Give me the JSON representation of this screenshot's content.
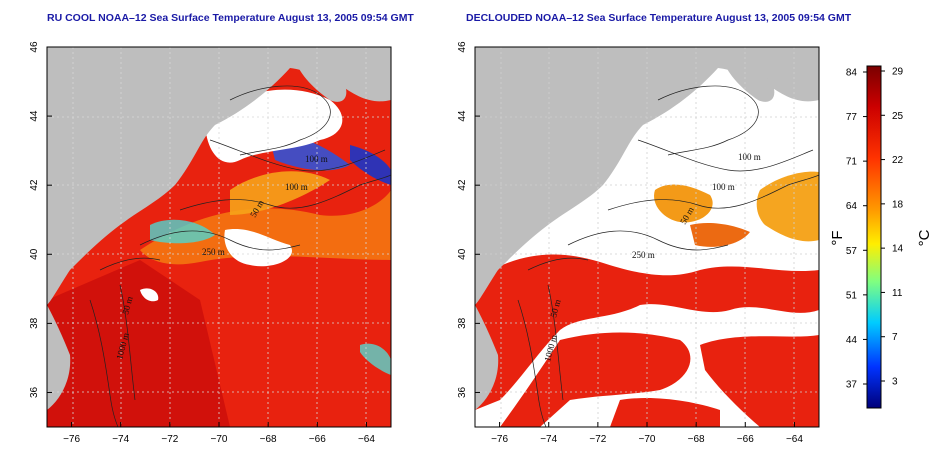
{
  "panels": [
    {
      "title": "RU COOL NOAA–12 Sea Surface Temperature August 13, 2005 09:54 GMT",
      "contour_labels": [
        "100 m",
        "100 m",
        "50 m",
        "250 m",
        "50 m",
        "1000 m"
      ]
    },
    {
      "title": "DECLOUDED NOAA–12 Sea Surface Temperature August 13, 2005 09:54 GMT",
      "contour_labels": [
        "100 m",
        "100 m",
        "50 m",
        "250 m",
        "50 m",
        "1000 m"
      ]
    }
  ],
  "map": {
    "lon_ticks": [
      "−76",
      "−74",
      "−72",
      "−70",
      "−68",
      "−66",
      "−64"
    ],
    "lat_ticks": [
      "46",
      "44",
      "42",
      "40",
      "38",
      "36"
    ],
    "lon_range": [
      -77,
      -63
    ],
    "lat_range": [
      35,
      46
    ]
  },
  "colorbar": {
    "fahrenheit_ticks": [
      "84",
      "77",
      "71",
      "64",
      "57",
      "51",
      "44",
      "37"
    ],
    "celsius_ticks": [
      "29",
      "25",
      "22",
      "18",
      "14",
      "11",
      "7",
      "3"
    ],
    "fahrenheit_unit": "°F",
    "celsius_unit": "°C",
    "colors": [
      "#7a0000",
      "#cc0000",
      "#ff3300",
      "#ff9900",
      "#ffee00",
      "#80ff80",
      "#00ccff",
      "#0033ff",
      "#00007a"
    ]
  },
  "colors": {
    "land": "#bebebe",
    "cloud": "#ffffff",
    "warm_water": "#e8220f",
    "title": "#1a1aa6"
  }
}
